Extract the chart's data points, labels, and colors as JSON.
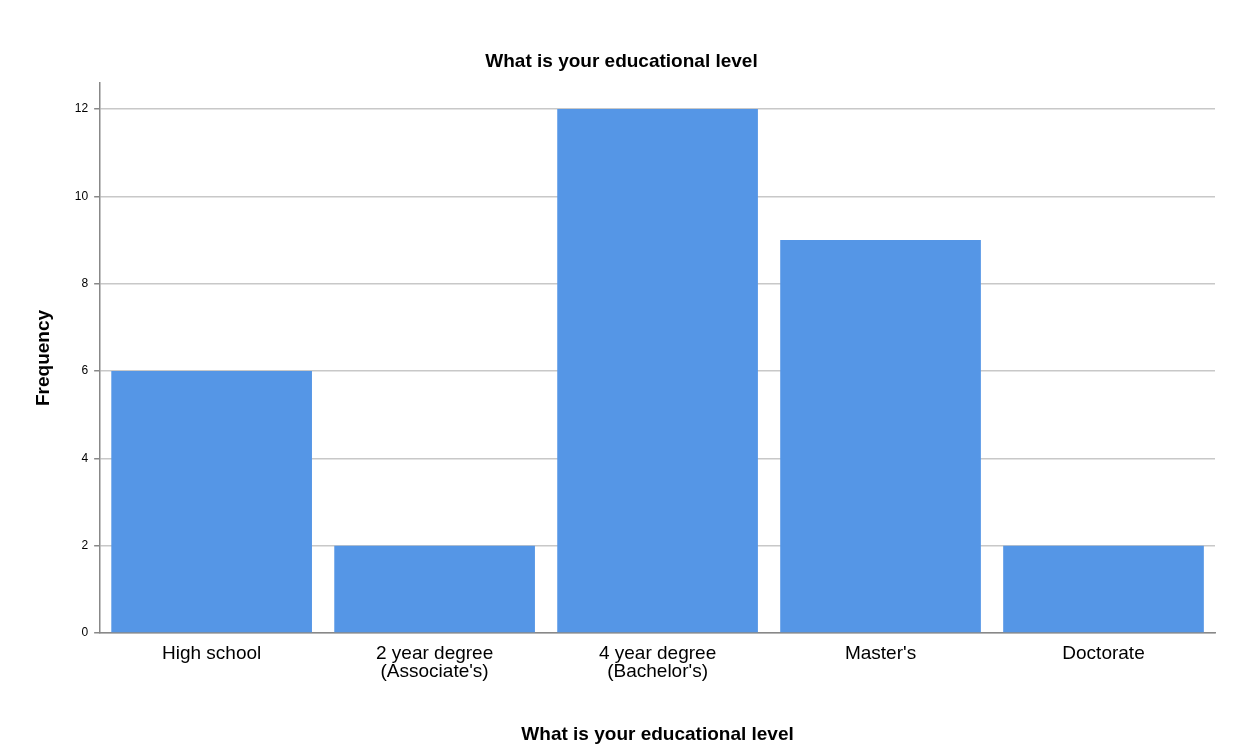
{
  "chart_data": {
    "type": "bar",
    "title": "What is your educational level",
    "xlabel": "What is your educational level",
    "ylabel": "Frequency",
    "categories": [
      "High school",
      "2 year degree (Associate's)",
      "4 year degree (Bachelor's)",
      "Master's",
      "Doctorate"
    ],
    "values": [
      6,
      2,
      12,
      9,
      2
    ],
    "color": "#5596e6",
    "ylim": [
      0,
      12.6
    ],
    "yticks": [
      0,
      2,
      4,
      6,
      8,
      10,
      12
    ],
    "grid": "y",
    "legend": false
  }
}
